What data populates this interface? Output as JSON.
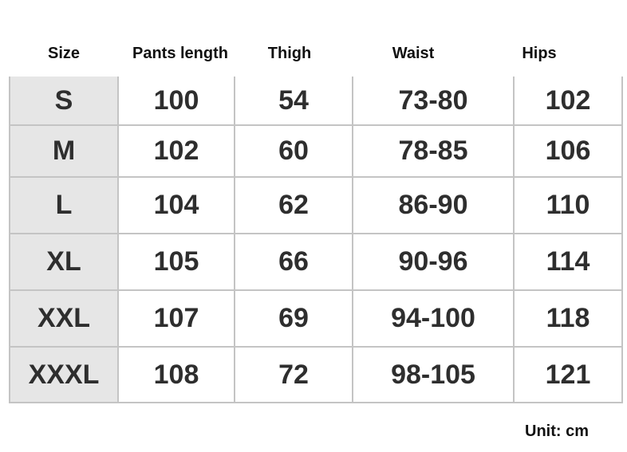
{
  "headers": [
    "Size",
    "Pants length",
    "Thigh",
    "Waist",
    "Hips"
  ],
  "rows": [
    [
      "S",
      "100",
      "54",
      "73-80",
      "102"
    ],
    [
      "M",
      "102",
      "60",
      "78-85",
      "106"
    ],
    [
      "L",
      "104",
      "62",
      "86-90",
      "110"
    ],
    [
      "XL",
      "105",
      "66",
      "90-96",
      "114"
    ],
    [
      "XXL",
      "107",
      "69",
      "94-100",
      "118"
    ],
    [
      "XXXL",
      "108",
      "72",
      "98-105",
      "121"
    ]
  ],
  "unit": "Unit: cm",
  "colors": {
    "size_column_bg": "#e6e6e6",
    "border": "#c4c4c4",
    "text": "#2e2e2e"
  }
}
